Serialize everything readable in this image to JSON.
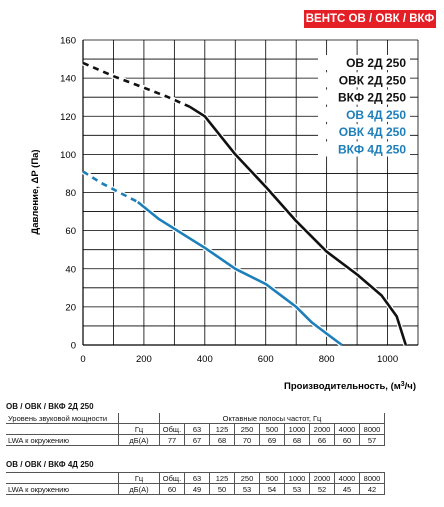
{
  "badge": "ВЕНТС ОВ / ОВК / ВКФ",
  "chart_data": {
    "type": "line",
    "xlabel": "Производительность, (м³/ч)",
    "ylabel": "Давление, ΔP (Па)",
    "xlim": [
      0,
      1100
    ],
    "ylim": [
      0,
      160
    ],
    "x_ticks": [
      0,
      200,
      400,
      600,
      800,
      1000
    ],
    "y_ticks": [
      0,
      20,
      40,
      60,
      80,
      100,
      120,
      140,
      160
    ],
    "grid": true,
    "legend_position": "top-right",
    "series": [
      {
        "name": "ОВ 2Д 250",
        "color": "#111111",
        "dash_until_x": 350,
        "x": [
          0,
          100,
          200,
          280,
          350,
          400,
          450,
          500,
          600,
          700,
          800,
          900,
          980,
          1030,
          1060
        ],
        "y": [
          148,
          141,
          135,
          130,
          125,
          120,
          110,
          100,
          83,
          65,
          49,
          37,
          26,
          15,
          0
        ]
      },
      {
        "name": "ОВК 2Д 250",
        "color": "#111111"
      },
      {
        "name": "ВКФ 2Д 250",
        "color": "#111111"
      },
      {
        "name": "ОВ 4Д 250",
        "color": "#1d7fb9",
        "dash_until_x": 180,
        "x": [
          0,
          60,
          120,
          180,
          250,
          350,
          400,
          500,
          600,
          650,
          700,
          750,
          800,
          850
        ],
        "y": [
          91,
          85,
          80,
          75,
          66,
          56,
          51,
          40,
          32,
          26,
          20,
          12,
          6,
          0
        ]
      },
      {
        "name": "ОВК 4Д 250",
        "color": "#1d7fb9"
      },
      {
        "name": "ВКФ 4Д 250",
        "color": "#1d7fb9"
      }
    ]
  },
  "table1": {
    "title": "ОВ / ОВК / ВКФ 2Д 250",
    "row_label": "Уровень звуковой мощности",
    "hz": "Гц",
    "octave_header": "Октавные полосы частот, Гц",
    "freqs": [
      "Общ.",
      "63",
      "125",
      "250",
      "500",
      "1000",
      "2000",
      "4000",
      "8000"
    ],
    "lwa_label": "LWA к окружению",
    "unit": "дБ(А)",
    "values": [
      "77",
      "67",
      "68",
      "70",
      "69",
      "68",
      "66",
      "60",
      "57"
    ]
  },
  "table2": {
    "title": "ОВ / ОВК / ВКФ 4Д 250",
    "hz": "Гц",
    "freqs": [
      "Общ.",
      "63",
      "125",
      "250",
      "500",
      "1000",
      "2000",
      "4000",
      "8000"
    ],
    "lwa_label": "LWA к окружению",
    "unit": "дБ(А)",
    "values": [
      "60",
      "49",
      "50",
      "53",
      "54",
      "53",
      "52",
      "45",
      "42"
    ]
  }
}
